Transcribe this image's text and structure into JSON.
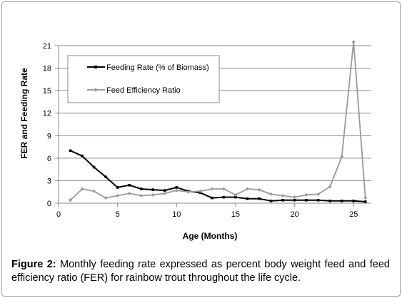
{
  "caption": {
    "label": "Figure 2:",
    "text": " Monthly feeding rate expressed as percent body weight feed and feed efficiency ratio (FER) for rainbow trout throughout the life cycle."
  },
  "chart_data": {
    "type": "line",
    "xlabel": "Age (Months)",
    "ylabel": "FER and Feeding Rate",
    "xlim": [
      0,
      26.5
    ],
    "ylim": [
      0,
      21
    ],
    "xticks": [
      0,
      5,
      10,
      15,
      20,
      25
    ],
    "yticks": [
      0,
      3,
      6,
      9,
      12,
      15,
      18,
      21
    ],
    "grid": "horizontal",
    "legend_position": "top-left",
    "series": [
      {
        "name": "Feeding Rate (% of Biomass)",
        "color": "#000000",
        "x": [
          1,
          2,
          3,
          4,
          5,
          6,
          7,
          8,
          9,
          10,
          11,
          12,
          13,
          14,
          15,
          16,
          17,
          18,
          19,
          20,
          21,
          22,
          23,
          24,
          25,
          26
        ],
        "values": [
          7.0,
          6.3,
          4.8,
          3.5,
          2.1,
          2.4,
          1.9,
          1.8,
          1.7,
          2.1,
          1.6,
          1.4,
          0.7,
          0.8,
          0.8,
          0.6,
          0.6,
          0.3,
          0.4,
          0.4,
          0.4,
          0.4,
          0.3,
          0.3,
          0.3,
          0.2
        ]
      },
      {
        "name": "Feed Efficiency Ratio",
        "color": "#9a9a9a",
        "x": [
          1,
          2,
          3,
          4,
          5,
          6,
          7,
          8,
          9,
          10,
          11,
          12,
          13,
          14,
          15,
          16,
          17,
          18,
          19,
          20,
          21,
          22,
          23,
          24,
          25,
          26
        ],
        "values": [
          0.4,
          1.9,
          1.6,
          0.7,
          1.0,
          1.3,
          1.0,
          1.1,
          1.3,
          1.7,
          1.5,
          1.6,
          1.9,
          1.9,
          1.1,
          1.9,
          1.8,
          1.2,
          1.0,
          0.8,
          1.1,
          1.2,
          2.2,
          6.2,
          21.5,
          0.7
        ]
      }
    ]
  }
}
